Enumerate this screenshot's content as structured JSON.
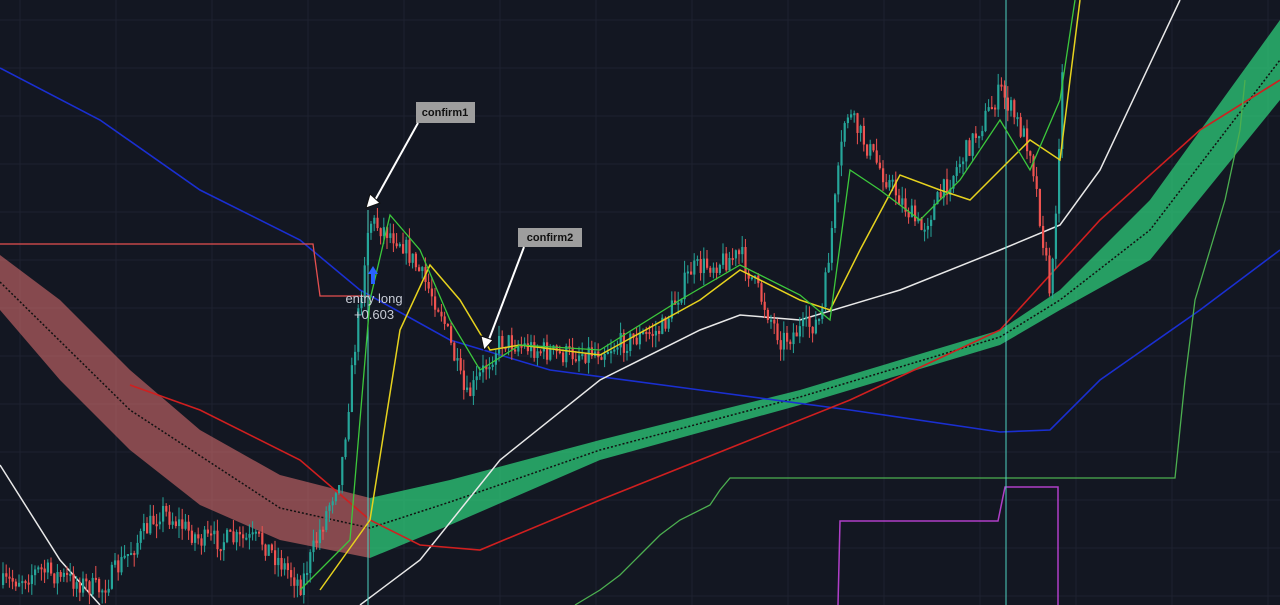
{
  "annotations": {
    "confirm1": "confirm1",
    "confirm2": "confirm2",
    "entry": "entry long",
    "entry_pnl": "+0.603"
  }
}
